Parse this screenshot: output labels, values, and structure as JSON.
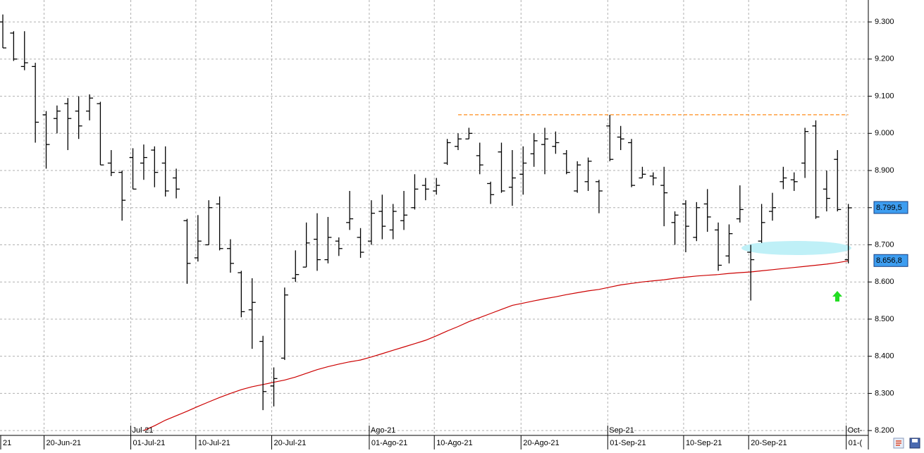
{
  "chart_data": {
    "type": "ohlc",
    "ylim": [
      8187,
      9359
    ],
    "yticks": [
      {
        "value": 8200,
        "label": "8.200"
      },
      {
        "value": 8300,
        "label": "8.300"
      },
      {
        "value": 8400,
        "label": "8.400"
      },
      {
        "value": 8500,
        "label": "8.500"
      },
      {
        "value": 8600,
        "label": "8.600"
      },
      {
        "value": 8700,
        "label": "8.700"
      },
      {
        "value": 8800,
        "label": "8.800"
      },
      {
        "value": 8900,
        "label": "8.900"
      },
      {
        "value": 9000,
        "label": "9.000"
      },
      {
        "value": 9100,
        "label": "9.100"
      },
      {
        "value": 9200,
        "label": "9.200"
      },
      {
        "value": 9300,
        "label": "9.300"
      }
    ],
    "grid": true,
    "bar_color": "#000000",
    "categories": [
      "21",
      null,
      null,
      null,
      "20-Jun-21",
      null,
      null,
      null,
      null,
      null,
      null,
      null,
      "01-Jul-21",
      null,
      null,
      null,
      null,
      null,
      "10-Jul-21",
      null,
      null,
      null,
      null,
      null,
      null,
      "20-Jul-21",
      null,
      null,
      null,
      null,
      null,
      null,
      null,
      null,
      "01-Ago-21",
      null,
      null,
      null,
      null,
      null,
      "10-Ago-21",
      null,
      null,
      null,
      null,
      null,
      null,
      null,
      "20-Ago-21",
      null,
      null,
      null,
      null,
      null,
      null,
      null,
      "01-Sep-21",
      null,
      null,
      null,
      null,
      null,
      null,
      "10-Sep-21",
      null,
      null,
      null,
      null,
      null,
      "20-Sep-21",
      null,
      null,
      null,
      null,
      null,
      null,
      null,
      null,
      "01-("
    ],
    "month_labels": [
      null,
      null,
      null,
      null,
      null,
      null,
      null,
      null,
      null,
      null,
      null,
      null,
      "Jul-21",
      null,
      null,
      null,
      null,
      null,
      null,
      null,
      null,
      null,
      null,
      null,
      null,
      null,
      null,
      null,
      null,
      null,
      null,
      null,
      null,
      null,
      "Ago-21",
      null,
      null,
      null,
      null,
      null,
      null,
      null,
      null,
      null,
      null,
      null,
      null,
      null,
      null,
      null,
      null,
      null,
      null,
      null,
      null,
      null,
      "Sep-21",
      null,
      null,
      null,
      null,
      null,
      null,
      null,
      null,
      null,
      null,
      null,
      null,
      null,
      null,
      null,
      null,
      null,
      null,
      null,
      null,
      null,
      "Oct-"
    ],
    "open": [
      9300,
      9270,
      9180,
      9180,
      9050,
      9040,
      9080,
      9060,
      9060,
      9080,
      8920,
      8895,
      8935,
      8920,
      8955,
      8920,
      8880,
      8765,
      8665,
      8700,
      8810,
      8690,
      8625,
      8525,
      8440,
      8320,
      8395,
      8610,
      8640,
      8715,
      8660,
      8710,
      8760,
      8720,
      8710,
      8790,
      8740,
      8765,
      8800,
      8860,
      8845,
      8920,
      8965,
      8985,
      8940,
      8865,
      8950,
      8855,
      8890,
      8945,
      8970,
      8965,
      8945,
      8845,
      8870,
      8870,
      9020,
      8990,
      8975,
      8880,
      8885,
      8860,
      8760,
      8810,
      8720,
      8810,
      8740,
      8670,
      8770,
      8680,
      8710,
      8790,
      8870,
      8875,
      8920,
      9020,
      8850,
      8930,
      8660
    ],
    "high": [
      9320,
      9275,
      9275,
      9190,
      9060,
      9075,
      9095,
      9100,
      9105,
      9085,
      8955,
      8900,
      8960,
      8970,
      8965,
      8965,
      8905,
      8770,
      8780,
      8820,
      8830,
      8715,
      8630,
      8610,
      8455,
      8370,
      8585,
      8685,
      8760,
      8785,
      8775,
      8720,
      8845,
      8745,
      8820,
      8835,
      8810,
      8845,
      8890,
      8880,
      8880,
      8985,
      9000,
      9015,
      8975,
      8870,
      8975,
      8955,
      8965,
      9000,
      9015,
      9005,
      8955,
      8925,
      8935,
      8875,
      9050,
      9020,
      8985,
      8910,
      8895,
      8910,
      8790,
      8820,
      8815,
      8850,
      8760,
      8755,
      8860,
      8700,
      8810,
      8840,
      8910,
      8895,
      9015,
      9035,
      8900,
      8955,
      8810
    ],
    "low": [
      9230,
      9195,
      9170,
      8975,
      8905,
      9000,
      8955,
      8985,
      9035,
      8915,
      8885,
      8765,
      8850,
      8875,
      8855,
      8830,
      8825,
      8595,
      8655,
      8700,
      8685,
      8625,
      8505,
      8420,
      8255,
      8265,
      8390,
      8600,
      8640,
      8630,
      8650,
      8670,
      8740,
      8665,
      8700,
      8715,
      8715,
      8740,
      8795,
      8820,
      8835,
      8915,
      8955,
      8985,
      8890,
      8810,
      8840,
      8805,
      8835,
      8910,
      8890,
      8945,
      8890,
      8840,
      8845,
      8785,
      8925,
      8955,
      8855,
      8880,
      8860,
      8750,
      8700,
      8680,
      8710,
      8735,
      8630,
      8650,
      8760,
      8550,
      8705,
      8765,
      8850,
      8845,
      8880,
      8770,
      8790,
      8790,
      8650
    ],
    "close": [
      9230,
      9200,
      9190,
      9030,
      8970,
      9060,
      9040,
      9020,
      9095,
      8915,
      8895,
      8820,
      8850,
      8935,
      8895,
      8845,
      8850,
      8650,
      8710,
      8800,
      8690,
      8650,
      8520,
      8545,
      8305,
      8340,
      8565,
      8620,
      8705,
      8660,
      8720,
      8690,
      8770,
      8680,
      8785,
      8750,
      8790,
      8780,
      8850,
      8850,
      8860,
      8975,
      8985,
      9000,
      8915,
      8835,
      8845,
      8880,
      8920,
      8980,
      8985,
      8975,
      8895,
      8915,
      8925,
      8845,
      8930,
      8985,
      8860,
      8890,
      8880,
      8840,
      8780,
      8750,
      8800,
      8775,
      8645,
      8730,
      8795,
      8660,
      8760,
      8800,
      8880,
      8870,
      9005,
      8775,
      8825,
      8795,
      8799.5
    ],
    "close_label": "8.799,5",
    "ma": {
      "color": "#cc0000",
      "last_label": "8.656,8",
      "values": [
        null,
        null,
        null,
        null,
        null,
        null,
        null,
        null,
        null,
        null,
        null,
        null,
        null,
        8200,
        8213,
        8228,
        8240,
        8252,
        8265,
        8277,
        8289,
        8300,
        8310,
        8318,
        8324,
        8330,
        8336,
        8344,
        8354,
        8364,
        8372,
        8379,
        8385,
        8390,
        8398,
        8407,
        8416,
        8425,
        8434,
        8443,
        8455,
        8468,
        8480,
        8493,
        8504,
        8515,
        8526,
        8537,
        8543,
        8549,
        8555,
        8560,
        8566,
        8571,
        8576,
        8580,
        8586,
        8592,
        8596,
        8600,
        8603,
        8606,
        8610,
        8613,
        8616,
        8618,
        8620,
        8623,
        8625,
        8627,
        8630,
        8633,
        8636,
        8639,
        8642,
        8645,
        8648,
        8652,
        8656.8
      ]
    },
    "resistance": {
      "color": "#ff8c1a",
      "values": [
        null,
        null,
        null,
        null,
        null,
        null,
        null,
        null,
        null,
        null,
        null,
        null,
        null,
        null,
        null,
        null,
        null,
        null,
        null,
        null,
        null,
        null,
        null,
        null,
        null,
        null,
        null,
        null,
        null,
        null,
        null,
        null,
        null,
        null,
        null,
        null,
        null,
        null,
        null,
        null,
        null,
        null,
        9050,
        9050,
        9050,
        9050,
        9050,
        9050,
        9050,
        9050,
        9050,
        9050,
        9050,
        9050,
        9050,
        9050,
        9050,
        9050,
        9050,
        9050,
        9050,
        9050,
        9050,
        9050,
        9050,
        9050,
        9050,
        9050,
        9050,
        9050,
        9050,
        9050,
        9050,
        9050,
        9050,
        9050,
        9050,
        9050,
        9050
      ]
    }
  }
}
